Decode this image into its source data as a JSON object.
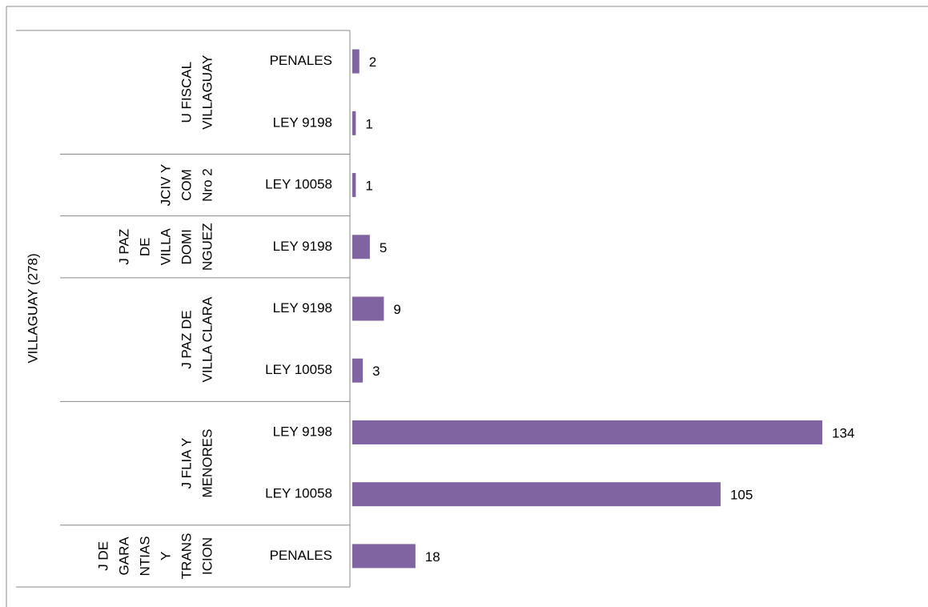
{
  "chart_data": {
    "type": "bar",
    "orientation": "horizontal",
    "color": "#8064a2",
    "parent": "VILLAGUAY (278)",
    "groups": [
      {
        "label_lines": [
          "U FISCAL",
          "VILLAGUAY"
        ],
        "categories": [
          "PENALES",
          "LEY 9198"
        ],
        "values": [
          2,
          1
        ]
      },
      {
        "label_lines": [
          "JCIV Y",
          "COM",
          "Nro 2"
        ],
        "categories": [
          "LEY 10058"
        ],
        "values": [
          1
        ]
      },
      {
        "label_lines": [
          "J PAZ",
          "DE",
          "VILLA",
          "DOMI",
          "NGUEZ"
        ],
        "categories": [
          "LEY 9198"
        ],
        "values": [
          5
        ]
      },
      {
        "label_lines": [
          "J PAZ DE",
          "VILLA CLARA"
        ],
        "categories": [
          "LEY 9198",
          "LEY 10058"
        ],
        "values": [
          9,
          3
        ]
      },
      {
        "label_lines": [
          "J FLIA Y",
          "MENORES"
        ],
        "categories": [
          "LEY 9198",
          "LEY 10058"
        ],
        "values": [
          134,
          105
        ]
      },
      {
        "label_lines": [
          "J DE",
          "GARA",
          "NTIAS",
          "Y",
          "TRANS",
          "ICION"
        ],
        "categories": [
          "PENALES"
        ],
        "values": [
          18
        ]
      }
    ]
  }
}
